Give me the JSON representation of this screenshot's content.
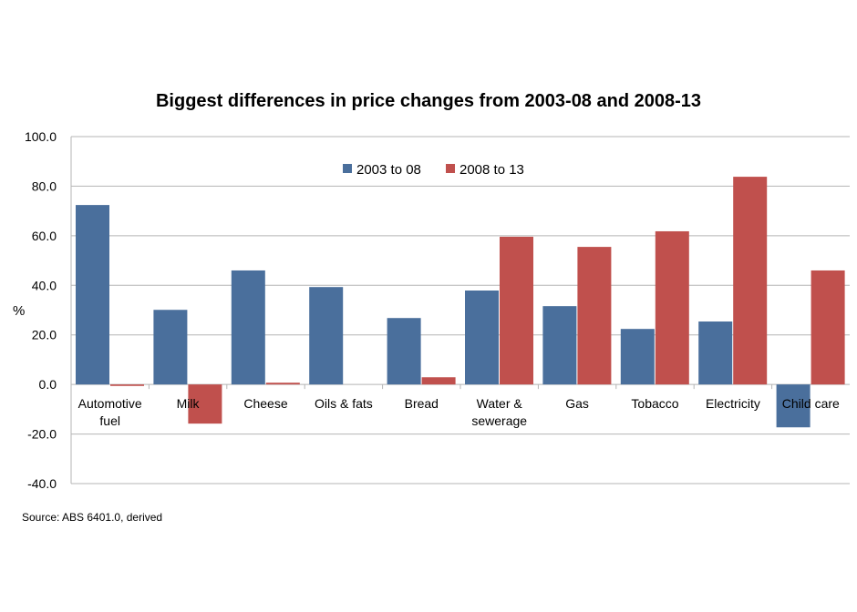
{
  "chart_data": {
    "type": "bar",
    "title": "Biggest differences in price changes from 2003-08 and 2008-13",
    "ylabel": "%",
    "xlabel": "",
    "ylim": [
      -40,
      100
    ],
    "yticks": [
      "100.0",
      "80.0",
      "60.0",
      "40.0",
      "20.0",
      "0.0",
      "-20.0",
      "-40.0"
    ],
    "grid": true,
    "legend_position": "top-center",
    "categories": [
      [
        "Automotive",
        "fuel"
      ],
      [
        "Milk"
      ],
      [
        "Cheese"
      ],
      [
        "Oils & fats"
      ],
      [
        "Bread"
      ],
      [
        "Water &",
        "sewerage"
      ],
      [
        "Gas"
      ],
      [
        "Tobacco"
      ],
      [
        "Electricity"
      ],
      [
        "Child care"
      ]
    ],
    "series": [
      {
        "name": "2003 to 08",
        "color": "#4A6F9C",
        "values": [
          72.4,
          30.1,
          46.0,
          39.3,
          26.8,
          37.9,
          31.6,
          22.4,
          25.4,
          -17.3
        ]
      },
      {
        "name": "2008 to 13",
        "color": "#C0504D",
        "values": [
          -0.6,
          -15.8,
          0.7,
          0.0,
          2.9,
          59.6,
          55.5,
          61.8,
          83.8,
          46.0
        ]
      }
    ],
    "source": "Source: ABS 6401.0, derived"
  }
}
